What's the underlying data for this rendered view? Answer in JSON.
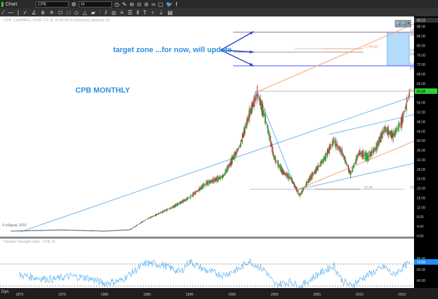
{
  "toolbar": {
    "app_label": "Chart",
    "symbol": "CPB",
    "interval": "M",
    "icons": [
      "settings-icon",
      "clock-icon",
      "pencil-icon",
      "minus-circle-icon",
      "target-icon",
      "cancel-icon",
      "link-icon",
      "chat-icon",
      "twitter-icon",
      "facebook-icon"
    ],
    "draw_tools": [
      "line-tool",
      "hline-tool",
      "vline-tool",
      "fib-tool",
      "angle-tool",
      "pitchfork-tool",
      "gann-tool",
      "ellipse-tool",
      "rect-tool",
      "eraser-tool",
      "triangle-tool",
      "channel-tool",
      "cycle-tool",
      "parallel-tool",
      "circle-tool",
      "bars-tool",
      "hbars-tool",
      "vbars-tool",
      "text-tool",
      "pin-tool",
      "arrow-tool",
      "box-tool"
    ]
  },
  "legend": {
    "main": "* CPB, CAMPBELL SOUP CO, M, 00:00-00:00 (Dynamic) (delayed 15)",
    "copyright": "© eSignal, 2016",
    "rsi": "* Relative Strength Index - CPB, M"
  },
  "annotations": {
    "target_text": "target zone ...for now, will update",
    "title": "CPB MONTHLY",
    "fib_1618": "1.618 (85.6",
    "fib_1": "1 (78.04)",
    "fib_1414": "1.414 (76.6",
    "fib_127": "1.27 (72.97",
    "high": "60.62",
    "low": "15.40",
    "low2": "19.51"
  },
  "colors": {
    "accent": "#2f8fde",
    "fib_box": "#b3dbfb",
    "orange": "#f5a36b",
    "trend_blue": "#6cb8f0",
    "up": "#2a9a2a",
    "down": "#c0302a"
  },
  "chart_data": {
    "type": "candlestick",
    "price_axis_ticks": [
      "88.00",
      "84.00",
      "80.00",
      "76.00",
      "72.00",
      "68.00",
      "64.00",
      "56.00",
      "52.00",
      "48.00",
      "44.00",
      "40.00",
      "36.00",
      "32.00",
      "28.00",
      "24.00",
      "20.00",
      "16.00",
      "12.00",
      "8.00",
      "4.00",
      "0.00"
    ],
    "price_axis_top": "88.53",
    "last_price": "60.84",
    "ylim": [
      0,
      88
    ],
    "x_ticks": [
      "1970",
      "1975",
      "1980",
      "1985",
      "1990",
      "1995",
      "2000",
      "2005",
      "2010",
      "2015"
    ],
    "price": {
      "x": [
        1969,
        1975,
        1980,
        1983,
        1985,
        1988,
        1990,
        1992,
        1994,
        1996,
        1997,
        1998,
        1999,
        2000,
        2001,
        2002,
        2003,
        2004,
        2005,
        2006,
        2007,
        2008,
        2009,
        2010,
        2011,
        2012,
        2013,
        2014,
        2015,
        2016
      ],
      "y": [
        2,
        2.5,
        2,
        2.6,
        7,
        12,
        16,
        22,
        25,
        38,
        50,
        60,
        49,
        33,
        27,
        24,
        17,
        23,
        28,
        33,
        40,
        35,
        26,
        35,
        33,
        37,
        45,
        42,
        48,
        60.8
      ]
    },
    "rsi": {
      "label": "Relative Strength Index",
      "ticks": [
        "80.00",
        "60.00",
        "40.00"
      ],
      "last": "73.83",
      "levels": [
        70,
        30
      ],
      "x": [
        1970,
        1972,
        1974,
        1976,
        1978,
        1980,
        1982,
        1984,
        1985,
        1987,
        1989,
        1990,
        1992,
        1994,
        1996,
        1997,
        1999,
        2000,
        2002,
        2003,
        2005,
        2007,
        2008,
        2009,
        2011,
        2013,
        2014,
        2016
      ],
      "y": [
        50,
        45,
        42,
        48,
        45,
        35,
        40,
        62,
        72,
        68,
        55,
        75,
        58,
        50,
        62,
        76,
        58,
        32,
        38,
        28,
        50,
        67,
        40,
        30,
        50,
        65,
        50,
        73.8
      ]
    }
  },
  "xaxis": {
    "dyn_label": "Dyn"
  }
}
